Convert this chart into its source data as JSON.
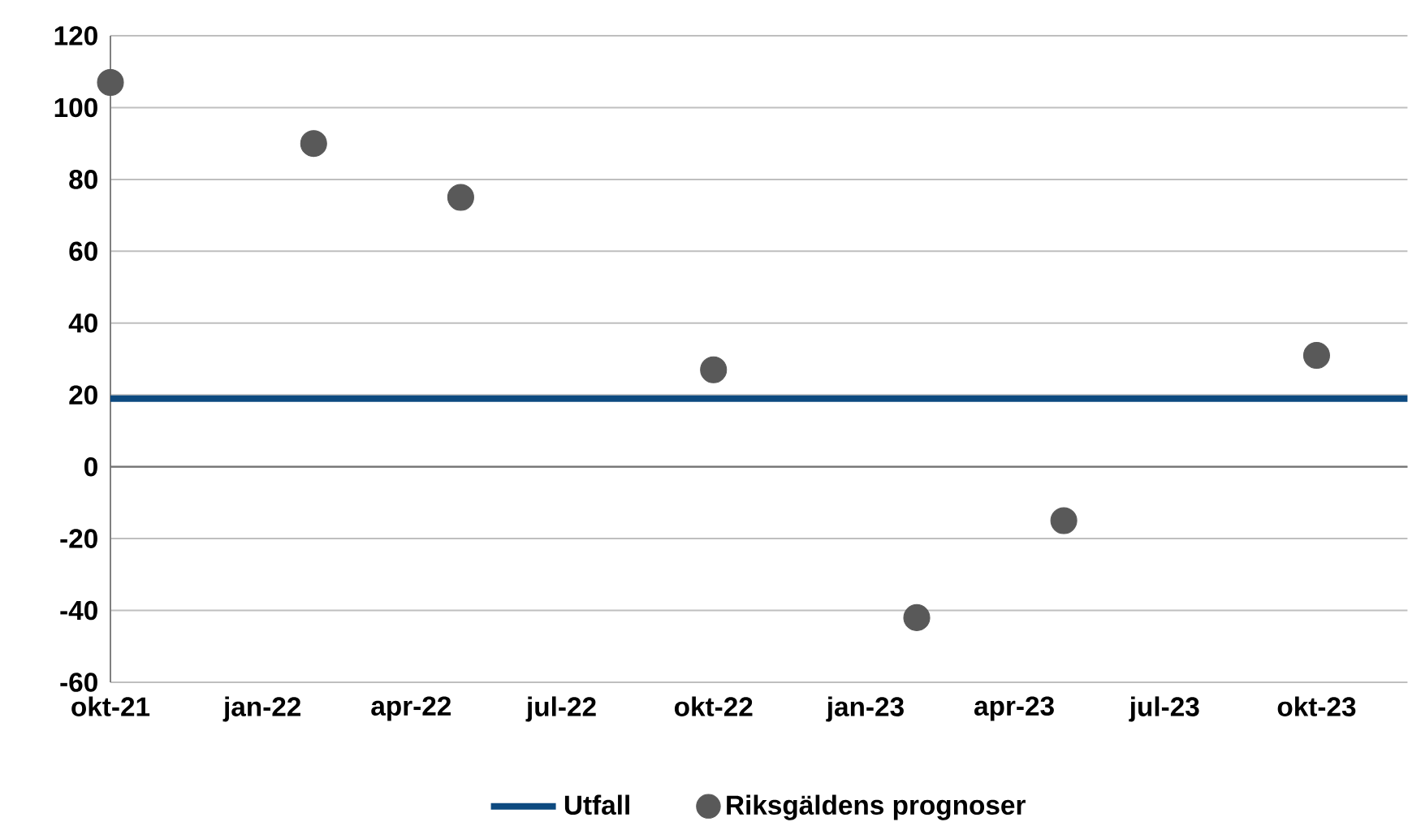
{
  "chart_data": {
    "type": "scatter",
    "xlim": [
      "2021-10-01",
      "2023-11-25"
    ],
    "xticks": [
      {
        "value": "2021-10-01",
        "label": "okt-21"
      },
      {
        "value": "2022-01-01",
        "label": "jan-22"
      },
      {
        "value": "2022-04-01",
        "label": "apr-22"
      },
      {
        "value": "2022-07-01",
        "label": "jul-22"
      },
      {
        "value": "2022-10-01",
        "label": "okt-22"
      },
      {
        "value": "2023-01-01",
        "label": "jan-23"
      },
      {
        "value": "2023-04-01",
        "label": "apr-23"
      },
      {
        "value": "2023-07-01",
        "label": "jul-23"
      },
      {
        "value": "2023-10-01",
        "label": "okt-23"
      }
    ],
    "ylim": [
      -60,
      120
    ],
    "yticks": [
      -60,
      -40,
      -20,
      0,
      20,
      40,
      60,
      80,
      100,
      120
    ],
    "grid": "y",
    "legend": "bottom",
    "series": [
      {
        "name": "Utfall",
        "type": "line",
        "marker": "none",
        "color": "#0d4a80",
        "x": [
          "2021-10-01",
          "2023-11-25"
        ],
        "values": [
          19,
          19
        ]
      },
      {
        "name": "Riksgäldens prognoser",
        "marker": "circle",
        "color": "#595959",
        "x": [
          "2021-10-01",
          "2022-02-01",
          "2022-05-01",
          "2022-10-01",
          "2023-02-01",
          "2023-05-01",
          "2023-10-01"
        ],
        "values": [
          107,
          90,
          75,
          27,
          -42,
          -15,
          31
        ]
      }
    ]
  }
}
